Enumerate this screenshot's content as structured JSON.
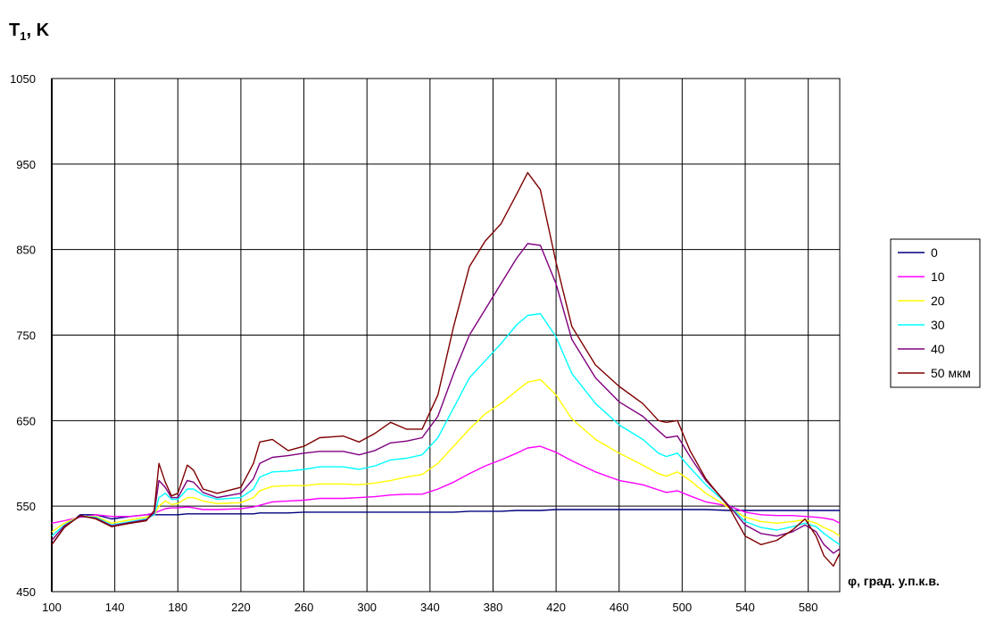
{
  "chart_data": {
    "type": "line",
    "ylabel_main": "T",
    "ylabel_sub": "1",
    "ylabel_rest": ", K",
    "xlabel": "φ, град. у.п.к.в.",
    "xlim": [
      100,
      600
    ],
    "ylim": [
      450,
      1050
    ],
    "xticks": [
      100,
      140,
      180,
      220,
      260,
      300,
      340,
      380,
      420,
      460,
      500,
      540,
      580
    ],
    "yticks": [
      450,
      550,
      650,
      750,
      850,
      950,
      1050
    ],
    "grid": true,
    "legend_position": "right",
    "x": [
      100,
      108,
      118,
      128,
      138,
      150,
      160,
      165,
      168,
      172,
      176,
      180,
      186,
      190,
      196,
      205,
      220,
      228,
      232,
      240,
      250,
      260,
      270,
      285,
      295,
      305,
      315,
      325,
      335,
      345,
      355,
      365,
      375,
      385,
      395,
      402,
      410,
      420,
      430,
      445,
      460,
      475,
      485,
      490,
      497,
      505,
      515,
      530,
      540,
      550,
      560,
      570,
      578,
      585,
      590,
      596,
      600
    ],
    "series": [
      {
        "name": "0",
        "color": "#00007f",
        "values": [
          505,
          525,
          540,
          540,
          535,
          538,
          540,
          540,
          540,
          540,
          540,
          540,
          541,
          541,
          541,
          541,
          541,
          541,
          542,
          542,
          542,
          543,
          543,
          543,
          543,
          543,
          543,
          543,
          543,
          543,
          543,
          544,
          544,
          544,
          545,
          545,
          545,
          546,
          546,
          546,
          546,
          546,
          546,
          546,
          546,
          546,
          546,
          545,
          545,
          545,
          545,
          545,
          545,
          545,
          545,
          545,
          545
        ]
      },
      {
        "name": "10",
        "color": "#ff00ff",
        "values": [
          530,
          533,
          537,
          540,
          538,
          538,
          540,
          542,
          544,
          547,
          548,
          548,
          549,
          548,
          546,
          546,
          547,
          549,
          551,
          555,
          556,
          557,
          559,
          559,
          560,
          561,
          563,
          564,
          564,
          570,
          578,
          588,
          597,
          604,
          612,
          618,
          620,
          613,
          603,
          590,
          580,
          575,
          569,
          566,
          568,
          562,
          555,
          550,
          543,
          540,
          539,
          539,
          538,
          537,
          536,
          534,
          530
        ]
      },
      {
        "name": "20",
        "color": "#ffff00",
        "values": [
          520,
          530,
          538,
          538,
          530,
          534,
          537,
          540,
          550,
          556,
          552,
          553,
          560,
          560,
          556,
          553,
          554,
          560,
          568,
          573,
          574,
          574,
          576,
          576,
          575,
          577,
          580,
          584,
          587,
          600,
          620,
          640,
          658,
          670,
          685,
          695,
          698,
          680,
          652,
          628,
          612,
          598,
          588,
          585,
          590,
          580,
          565,
          548,
          537,
          532,
          530,
          532,
          534,
          530,
          525,
          520,
          515
        ]
      },
      {
        "name": "30",
        "color": "#00ffff",
        "values": [
          515,
          528,
          538,
          537,
          528,
          532,
          535,
          540,
          560,
          565,
          558,
          558,
          570,
          570,
          563,
          558,
          560,
          570,
          584,
          590,
          591,
          593,
          596,
          596,
          593,
          597,
          604,
          606,
          610,
          630,
          665,
          700,
          720,
          740,
          762,
          773,
          775,
          748,
          705,
          670,
          645,
          628,
          612,
          608,
          612,
          595,
          575,
          550,
          532,
          525,
          522,
          526,
          530,
          526,
          518,
          510,
          505
        ]
      },
      {
        "name": "40",
        "color": "#7f007f",
        "values": [
          510,
          527,
          538,
          536,
          527,
          531,
          534,
          542,
          580,
          572,
          560,
          560,
          580,
          578,
          566,
          560,
          565,
          582,
          600,
          607,
          609,
          612,
          614,
          614,
          610,
          615,
          624,
          626,
          630,
          655,
          705,
          750,
          780,
          810,
          840,
          857,
          855,
          810,
          745,
          700,
          672,
          655,
          638,
          630,
          632,
          608,
          580,
          550,
          528,
          518,
          515,
          520,
          528,
          520,
          505,
          495,
          500
        ]
      },
      {
        "name": "50 мкм",
        "color": "#7f0000",
        "values": [
          505,
          525,
          539,
          535,
          526,
          530,
          533,
          545,
          600,
          578,
          562,
          565,
          598,
          592,
          570,
          565,
          572,
          600,
          625,
          628,
          615,
          620,
          630,
          632,
          625,
          635,
          648,
          640,
          640,
          680,
          760,
          830,
          860,
          880,
          915,
          940,
          920,
          835,
          760,
          715,
          690,
          670,
          650,
          648,
          650,
          615,
          582,
          548,
          515,
          505,
          510,
          522,
          535,
          515,
          492,
          480,
          495
        ]
      }
    ]
  }
}
